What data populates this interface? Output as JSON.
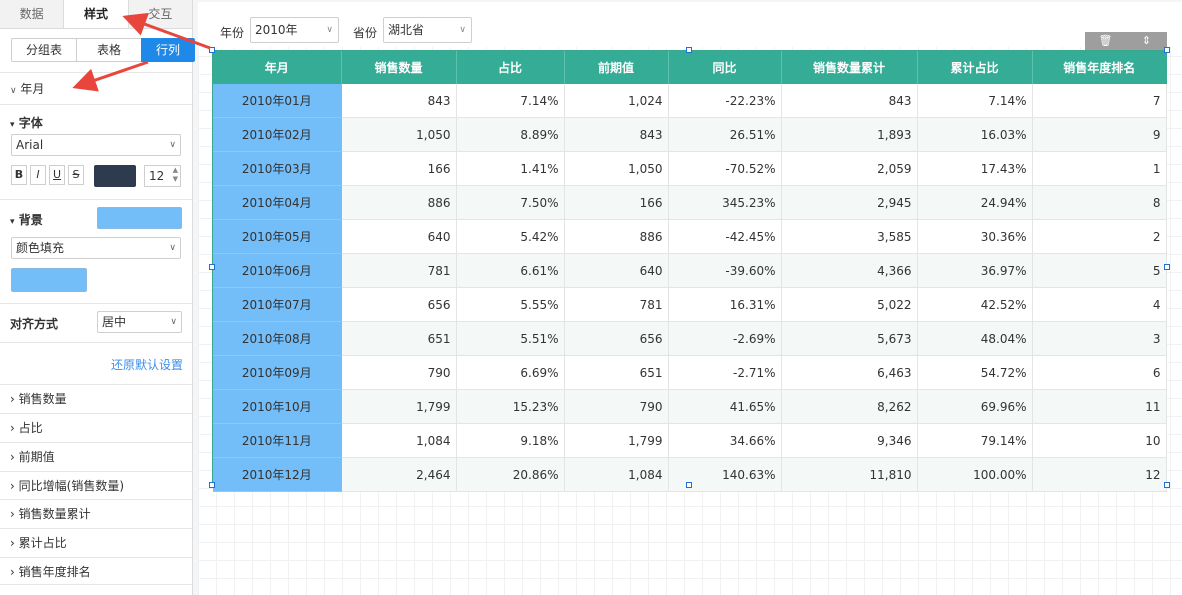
{
  "panel": {
    "tabs": [
      {
        "label": "数据"
      },
      {
        "label": "样式"
      },
      {
        "label": "交互"
      }
    ],
    "segments": [
      {
        "label": "分组表"
      },
      {
        "label": "表格"
      },
      {
        "label": "行列"
      }
    ],
    "field_title": "年月",
    "font_section": "字体",
    "font_family": "Arial",
    "format_buttons": [
      "B",
      "I",
      "U",
      "S"
    ],
    "font_color": "#2e3a4d",
    "font_size": "12",
    "bg_section": "背景",
    "bg_color": "#73bdf8",
    "fill_type": "颜色填充",
    "align_label": "对齐方式",
    "align_value": "居中",
    "reset_link": "还原默认设置",
    "fields": [
      "销售数量",
      "占比",
      "前期值",
      "同比增幅(销售数量)",
      "销售数量累计",
      "累计占比",
      "销售年度排名"
    ]
  },
  "filters": {
    "year_label": "年份",
    "year_value": "2010年",
    "province_label": "省份",
    "province_value": "湖北省"
  },
  "toolbar": {
    "delete_icon": "trash-icon",
    "move_icon": "move-icon"
  },
  "table": {
    "headers": [
      "年月",
      "销售数量",
      "占比",
      "前期值",
      "同比",
      "销售数量累计",
      "累计占比",
      "销售年度排名"
    ],
    "rows": [
      [
        "2010年01月",
        "843",
        "7.14%",
        "1,024",
        "-22.23%",
        "843",
        "7.14%",
        "7"
      ],
      [
        "2010年02月",
        "1,050",
        "8.89%",
        "843",
        "26.51%",
        "1,893",
        "16.03%",
        "9"
      ],
      [
        "2010年03月",
        "166",
        "1.41%",
        "1,050",
        "-70.52%",
        "2,059",
        "17.43%",
        "1"
      ],
      [
        "2010年04月",
        "886",
        "7.50%",
        "166",
        "345.23%",
        "2,945",
        "24.94%",
        "8"
      ],
      [
        "2010年05月",
        "640",
        "5.42%",
        "886",
        "-42.45%",
        "3,585",
        "30.36%",
        "2"
      ],
      [
        "2010年06月",
        "781",
        "6.61%",
        "640",
        "-39.60%",
        "4,366",
        "36.97%",
        "5"
      ],
      [
        "2010年07月",
        "656",
        "5.55%",
        "781",
        "16.31%",
        "5,022",
        "42.52%",
        "4"
      ],
      [
        "2010年08月",
        "651",
        "5.51%",
        "656",
        "-2.69%",
        "5,673",
        "48.04%",
        "3"
      ],
      [
        "2010年09月",
        "790",
        "6.69%",
        "651",
        "-2.71%",
        "6,463",
        "54.72%",
        "6"
      ],
      [
        "2010年10月",
        "1,799",
        "15.23%",
        "790",
        "41.65%",
        "8,262",
        "69.96%",
        "11"
      ],
      [
        "2010年11月",
        "1,084",
        "9.18%",
        "1,799",
        "34.66%",
        "9,346",
        "79.14%",
        "10"
      ],
      [
        "2010年12月",
        "2,464",
        "20.86%",
        "1,084",
        "140.63%",
        "11,810",
        "100.00%",
        "12"
      ]
    ]
  },
  "colors": {
    "header": "#35ac96",
    "first_column": "#73bdf8",
    "accent": "#1e89e9",
    "annotation_arrow": "#e8463c"
  }
}
